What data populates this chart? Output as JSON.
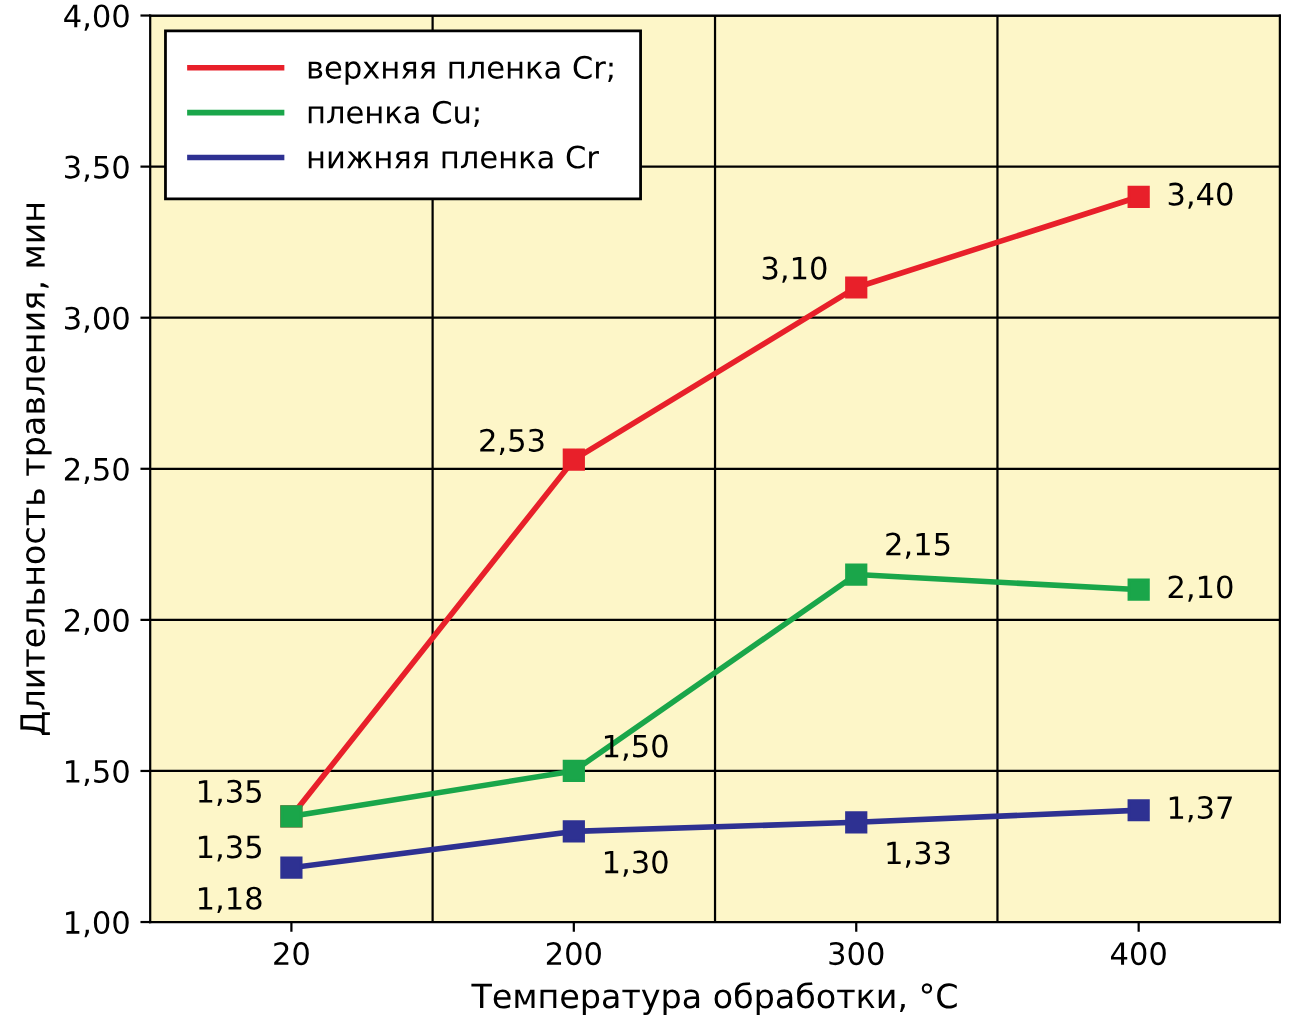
{
  "chart_data": {
    "type": "line",
    "xlabel": "Температура обработки, °C",
    "ylabel": "Длительность травления, мин",
    "categories": [
      "20",
      "200",
      "300",
      "400"
    ],
    "series": [
      {
        "name": "верхняя пленка Cr;",
        "color": "#e8202a",
        "values": [
          1.35,
          2.53,
          3.1,
          3.4
        ],
        "value_labels": [
          "1,35",
          "2,53",
          "3,10",
          "3,40"
        ]
      },
      {
        "name": "пленка Cu;",
        "color": "#1aa64a",
        "values": [
          1.35,
          1.5,
          2.15,
          2.1
        ],
        "value_labels": [
          "1,35",
          "1,50",
          "2,15",
          "2,10"
        ]
      },
      {
        "name": "нижняя пленка Cr",
        "color": "#2e3192",
        "values": [
          1.18,
          1.3,
          1.33,
          1.37
        ],
        "value_labels": [
          "1,18",
          "1,30",
          "1,33",
          "1,37"
        ]
      }
    ],
    "ylim": [
      1.0,
      4.0
    ],
    "yticks": [
      {
        "value": 1.0,
        "label": "1,00"
      },
      {
        "value": 1.5,
        "label": "1,50"
      },
      {
        "value": 2.0,
        "label": "2,00"
      },
      {
        "value": 2.5,
        "label": "2,50"
      },
      {
        "value": 3.0,
        "label": "3,00"
      },
      {
        "value": 3.5,
        "label": "3,50"
      },
      {
        "value": 4.0,
        "label": "4,00"
      }
    ],
    "grid": true,
    "legend": "top left",
    "marker": "square",
    "line_style": "solid"
  }
}
